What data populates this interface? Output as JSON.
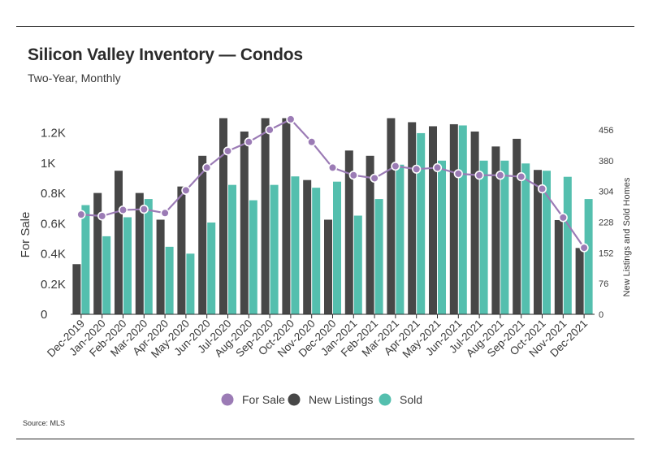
{
  "header": {
    "title": "Silicon Valley Inventory — Condos",
    "subtitle": "Two-Year, Monthly"
  },
  "footer": {
    "source": "Source:  MLS"
  },
  "chart_data": {
    "type": "bar",
    "title": "Silicon Valley Inventory — Condos",
    "subtitle": "Two-Year, Monthly",
    "categories": [
      "Dec-2019",
      "Jan-2020",
      "Feb-2020",
      "Mar-2020",
      "Apr-2020",
      "May-2020",
      "Jun-2020",
      "Jul-2020",
      "Aug-2020",
      "Sep-2020",
      "Oct-2020",
      "Nov-2020",
      "Dec-2020",
      "Jan-2021",
      "Feb-2021",
      "Mar-2021",
      "Apr-2021",
      "May-2021",
      "Jun-2021",
      "Jul-2021",
      "Aug-2021",
      "Sep-2021",
      "Oct-2021",
      "Nov-2021",
      "Dec-2021"
    ],
    "series": [
      {
        "name": "For Sale",
        "type": "line",
        "axis": "left",
        "color": "#9b7bb5",
        "values": [
          660,
          650,
          690,
          695,
          670,
          820,
          970,
          1080,
          1140,
          1220,
          1290,
          1140,
          970,
          920,
          900,
          980,
          960,
          970,
          930,
          920,
          920,
          910,
          830,
          640,
          440
        ]
      },
      {
        "name": "New Listings",
        "type": "bar",
        "axis": "right",
        "color": "#474747",
        "values": [
          124,
          300,
          355,
          300,
          234,
          316,
          392,
          485,
          452,
          485,
          485,
          332,
          234,
          405,
          392,
          485,
          475,
          465,
          470,
          452,
          415,
          434,
          357,
          233,
          164
        ]
      },
      {
        "name": "Sold",
        "type": "bar",
        "axis": "right",
        "color": "#54bfae",
        "values": [
          270,
          193,
          240,
          285,
          167,
          150,
          227,
          320,
          282,
          320,
          341,
          313,
          328,
          244,
          285,
          370,
          448,
          380,
          467,
          380,
          380,
          373,
          355,
          340,
          285
        ]
      }
    ],
    "left_axis": {
      "label": "For Sale",
      "ticks": [
        "0",
        "0.2K",
        "0.4K",
        "0.6K",
        "0.8K",
        "1K",
        "1.2K"
      ],
      "range": [
        0,
        1300
      ]
    },
    "right_axis": {
      "label": "New Listings and Sold Homes",
      "ticks": [
        "0",
        "76",
        "152",
        "228",
        "304",
        "380",
        "456"
      ],
      "range": [
        0,
        486
      ]
    },
    "legend": {
      "position": "bottom",
      "items": [
        {
          "name": "For Sale",
          "marker": "circle",
          "color": "#9b7bb5"
        },
        {
          "name": "New Listings",
          "marker": "circle",
          "color": "#474747"
        },
        {
          "name": "Sold",
          "marker": "circle",
          "color": "#54bfae"
        }
      ]
    }
  }
}
